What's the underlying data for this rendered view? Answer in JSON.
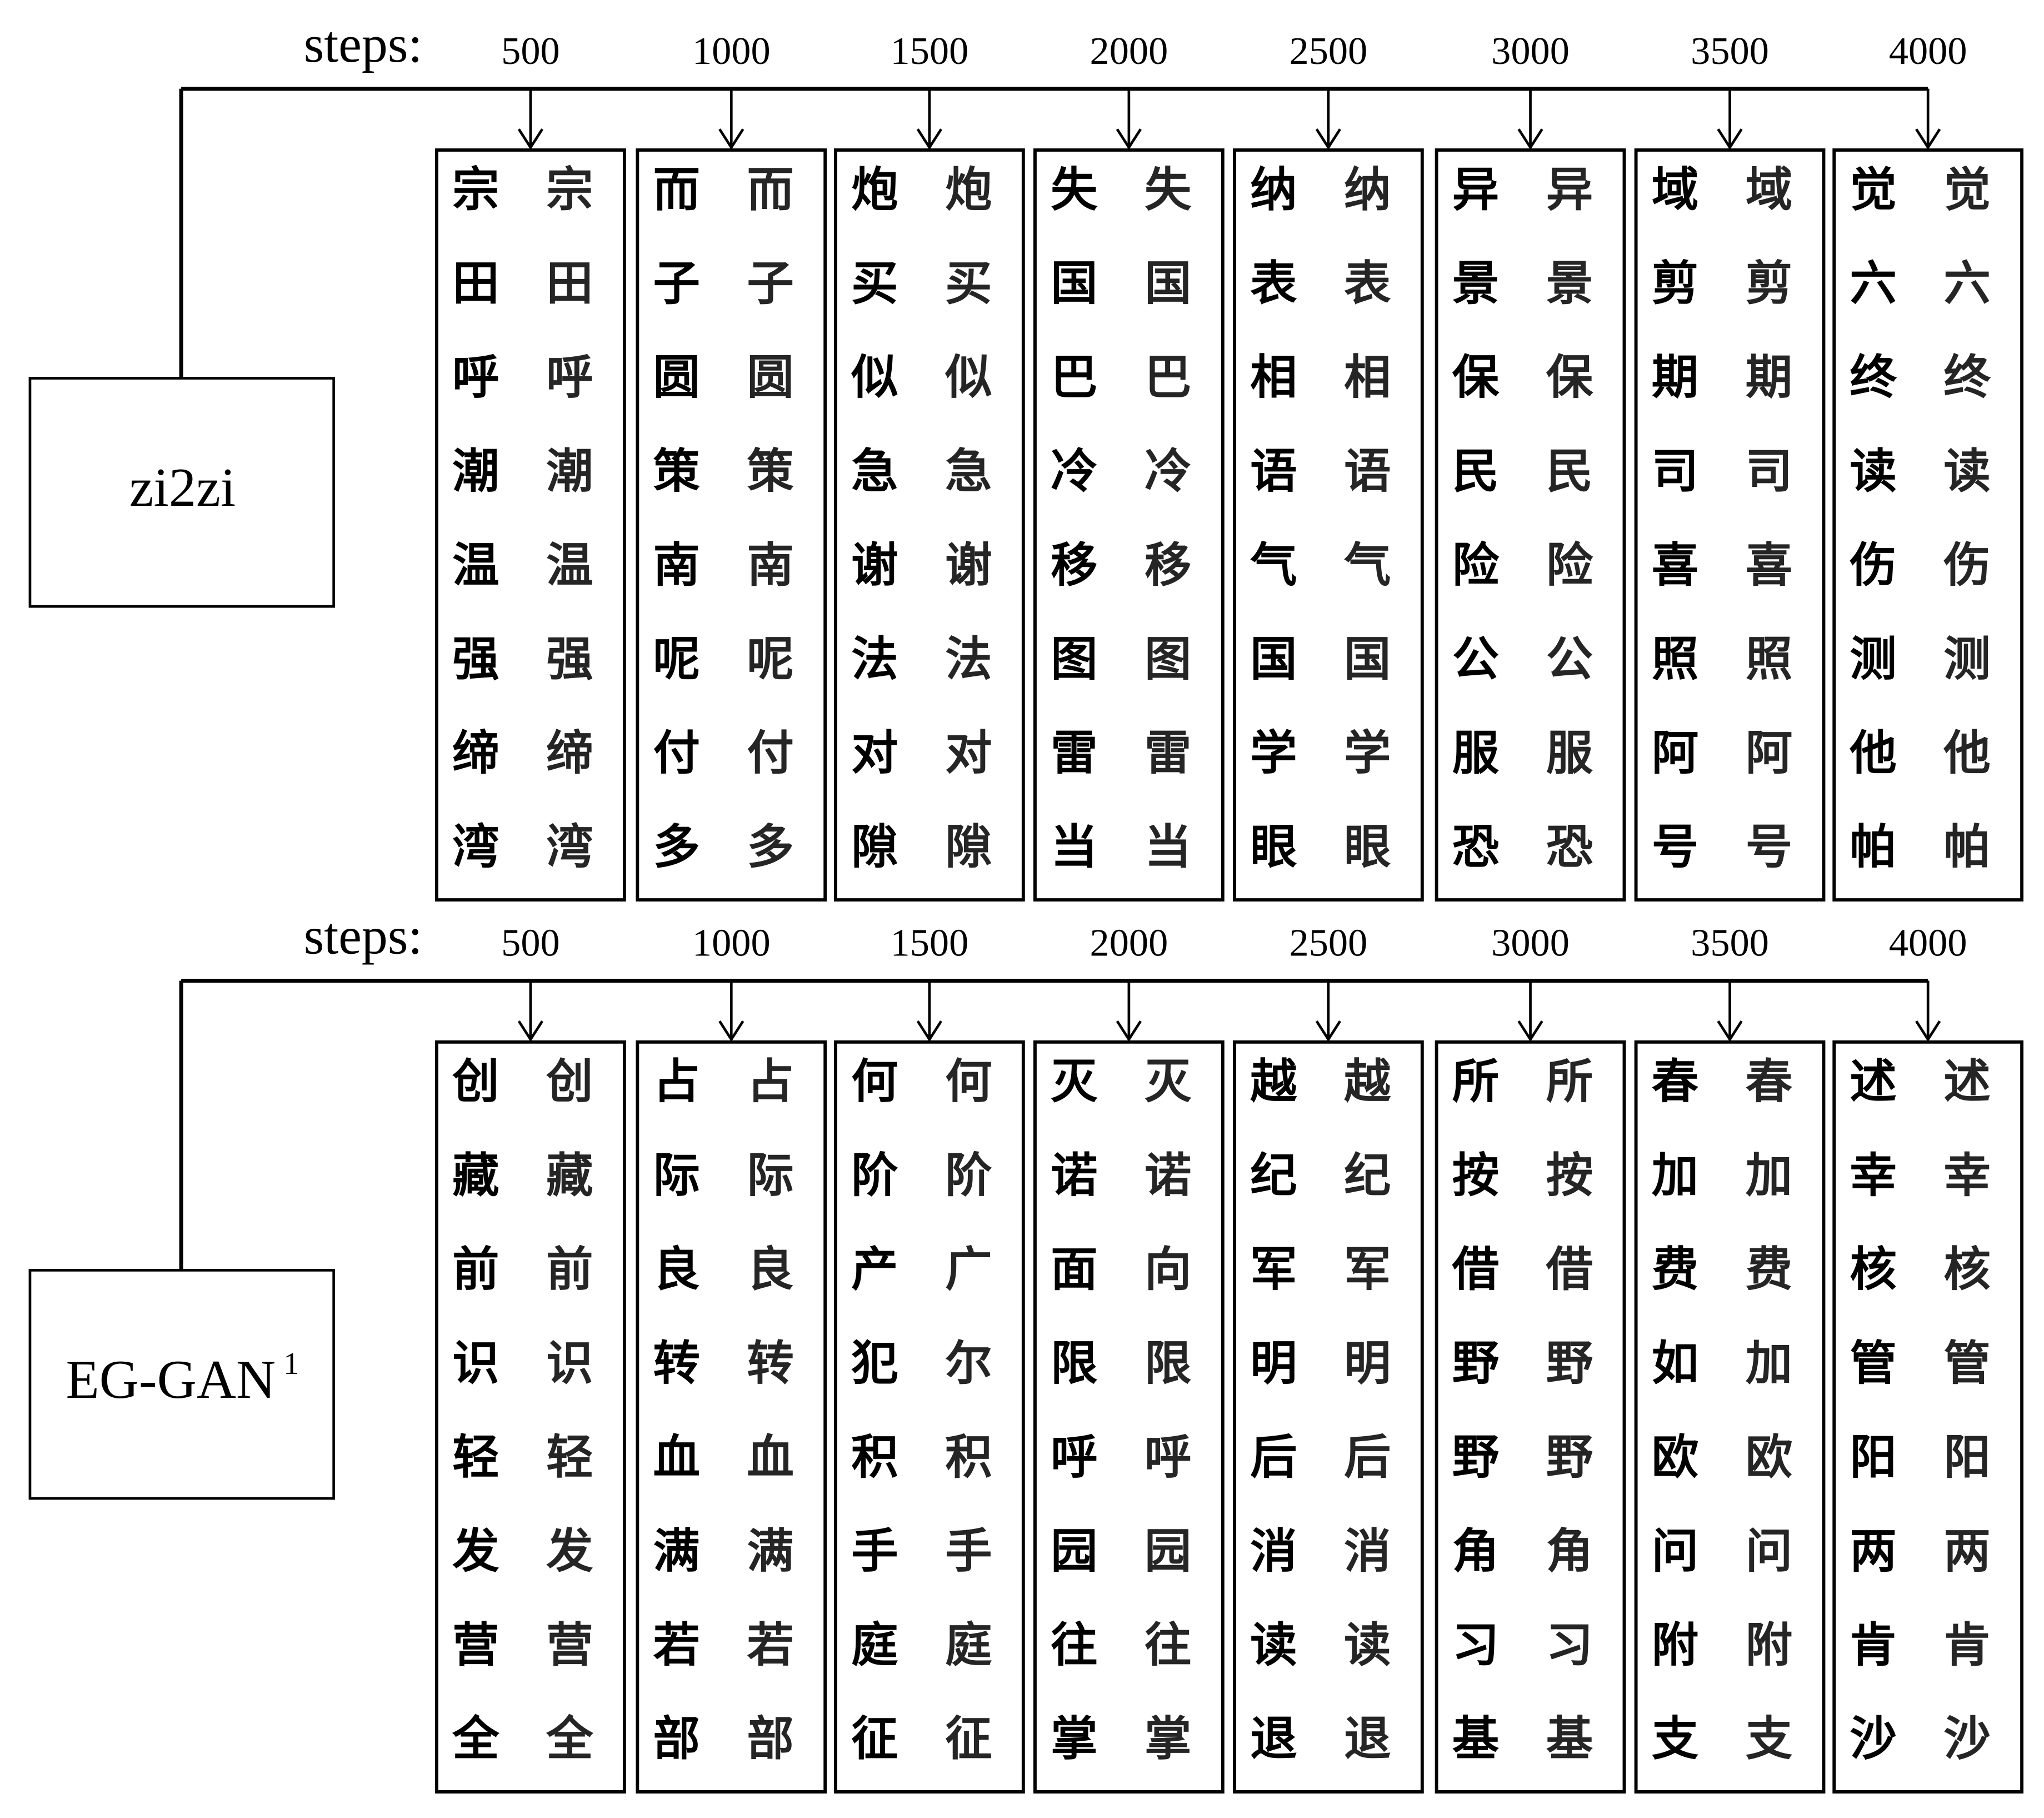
{
  "panels": [
    {
      "label": "zi2zi",
      "superscript": null,
      "steps_label": "steps:",
      "columns": [
        {
          "step": 500,
          "source": [
            "宗",
            "田",
            "呼",
            "潮",
            "温",
            "强",
            "缔",
            "湾"
          ],
          "generated": [
            "宗",
            "田",
            "呼",
            "潮",
            "温",
            "强",
            "缔",
            "湾"
          ]
        },
        {
          "step": 1000,
          "source": [
            "而",
            "子",
            "圆",
            "策",
            "南",
            "呢",
            "付",
            "多"
          ],
          "generated": [
            "而",
            "子",
            "圆",
            "策",
            "南",
            "呢",
            "付",
            "多"
          ]
        },
        {
          "step": 1500,
          "source": [
            "炮",
            "买",
            "似",
            "急",
            "谢",
            "法",
            "对",
            "隙"
          ],
          "generated": [
            "炮",
            "买",
            "似",
            "急",
            "谢",
            "法",
            "对",
            "隙"
          ]
        },
        {
          "step": 2000,
          "source": [
            "失",
            "国",
            "巴",
            "冷",
            "移",
            "图",
            "雷",
            "当"
          ],
          "generated": [
            "失",
            "国",
            "巴",
            "冷",
            "移",
            "图",
            "雷",
            "当"
          ]
        },
        {
          "step": 2500,
          "source": [
            "纳",
            "表",
            "相",
            "语",
            "气",
            "国",
            "学",
            "眼"
          ],
          "generated": [
            "纳",
            "表",
            "相",
            "语",
            "气",
            "国",
            "学",
            "眼"
          ]
        },
        {
          "step": 3000,
          "source": [
            "异",
            "景",
            "保",
            "民",
            "险",
            "公",
            "服",
            "恐"
          ],
          "generated": [
            "异",
            "景",
            "保",
            "民",
            "险",
            "公",
            "服",
            "恐"
          ]
        },
        {
          "step": 3500,
          "source": [
            "域",
            "剪",
            "期",
            "司",
            "喜",
            "照",
            "阿",
            "号"
          ],
          "generated": [
            "域",
            "剪",
            "期",
            "司",
            "喜",
            "照",
            "阿",
            "号"
          ]
        },
        {
          "step": 4000,
          "source": [
            "觉",
            "六",
            "终",
            "读",
            "伤",
            "测",
            "他",
            "帕"
          ],
          "generated": [
            "觉",
            "六",
            "终",
            "读",
            "伤",
            "测",
            "他",
            "帕"
          ]
        }
      ]
    },
    {
      "label": "EG-GAN",
      "superscript": "1",
      "steps_label": "steps:",
      "columns": [
        {
          "step": 500,
          "source": [
            "创",
            "藏",
            "前",
            "识",
            "轻",
            "发",
            "营",
            "全"
          ],
          "generated": [
            "创",
            "藏",
            "前",
            "识",
            "轻",
            "发",
            "营",
            "全"
          ]
        },
        {
          "step": 1000,
          "source": [
            "占",
            "际",
            "良",
            "转",
            "血",
            "满",
            "若",
            "部"
          ],
          "generated": [
            "占",
            "际",
            "良",
            "转",
            "血",
            "满",
            "若",
            "部"
          ]
        },
        {
          "step": 1500,
          "source": [
            "何",
            "阶",
            "产",
            "犯",
            "积",
            "手",
            "庭",
            "征"
          ],
          "generated": [
            "何",
            "阶",
            "广",
            "尔",
            "积",
            "手",
            "庭",
            "征"
          ]
        },
        {
          "step": 2000,
          "source": [
            "灭",
            "诺",
            "面",
            "限",
            "呼",
            "园",
            "往",
            "掌"
          ],
          "generated": [
            "灭",
            "诺",
            "向",
            "限",
            "呼",
            "园",
            "往",
            "掌"
          ]
        },
        {
          "step": 2500,
          "source": [
            "越",
            "纪",
            "军",
            "明",
            "后",
            "消",
            "读",
            "退"
          ],
          "generated": [
            "越",
            "纪",
            "军",
            "明",
            "后",
            "消",
            "读",
            "退"
          ]
        },
        {
          "step": 3000,
          "source": [
            "所",
            "按",
            "借",
            "野",
            "野",
            "角",
            "习",
            "基"
          ],
          "generated": [
            "所",
            "按",
            "借",
            "野",
            "野",
            "角",
            "习",
            "基"
          ]
        },
        {
          "step": 3500,
          "source": [
            "春",
            "加",
            "费",
            "如",
            "欧",
            "问",
            "附",
            "支"
          ],
          "generated": [
            "春",
            "加",
            "费",
            "加",
            "欧",
            "问",
            "附",
            "支"
          ]
        },
        {
          "step": 4000,
          "source": [
            "述",
            "幸",
            "核",
            "管",
            "阳",
            "两",
            "肯",
            "沙"
          ],
          "generated": [
            "述",
            "幸",
            "核",
            "管",
            "阳",
            "两",
            "肯",
            "沙"
          ]
        }
      ]
    }
  ]
}
